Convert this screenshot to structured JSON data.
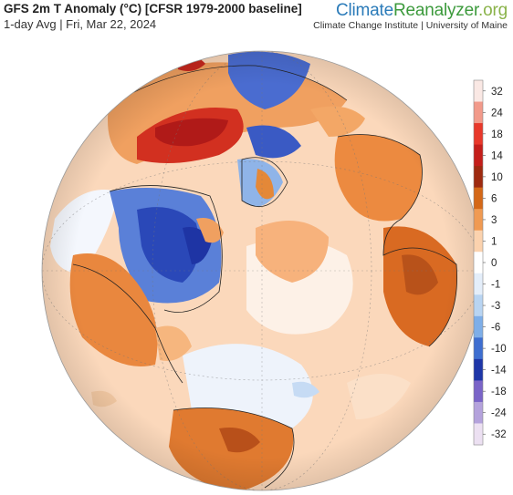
{
  "header": {
    "title": "GFS 2m T Anomaly (°C) [CFSR 1979-2000 baseline]",
    "subtitle": "1-day Avg | Fri, Mar 22, 2024"
  },
  "brand": {
    "name_part1": "Climate",
    "name_part2": "Reanalyzer",
    "name_part3": ".org",
    "affiliation": "Climate Change Institute | University of Maine",
    "colors": {
      "climate": "#2b7bb9",
      "reanalyzer": "#3c9a3c",
      "org": "#8ab34a"
    }
  },
  "legend": {
    "ticks": [
      "32",
      "24",
      "18",
      "14",
      "10",
      "6",
      "3",
      "1",
      "0",
      "-1",
      "-3",
      "-6",
      "-10",
      "-14",
      "-18",
      "-24",
      "-32"
    ],
    "colors": [
      "#fae8e4",
      "#f29a8a",
      "#e8382a",
      "#c41e1a",
      "#9e2a10",
      "#d46818",
      "#f09a52",
      "#fbd2ae",
      "#ffffff",
      "#e4eefa",
      "#b8d4f2",
      "#7eaee8",
      "#3e6ed0",
      "#1e36a8",
      "#7a64c8",
      "#b4a2dc",
      "#ece0f2"
    ]
  },
  "map": {
    "projection": "orthographic",
    "center": "North Atlantic / Arctic",
    "regions": [
      {
        "name": "siberia-warm",
        "anomaly": 14
      },
      {
        "name": "canada-cold",
        "anomaly": -14
      },
      {
        "name": "greenland-cold",
        "anomaly": -10
      },
      {
        "name": "europe-warm",
        "anomaly": 6
      },
      {
        "name": "usa-warm",
        "anomaly": 6
      },
      {
        "name": "africa-warm",
        "anomaly": 6
      },
      {
        "name": "south-america-warm",
        "anomaly": 6
      },
      {
        "name": "north-atlantic-warm",
        "anomaly": 3
      },
      {
        "name": "subtropical-atlantic-cool",
        "anomaly": -1
      }
    ]
  }
}
